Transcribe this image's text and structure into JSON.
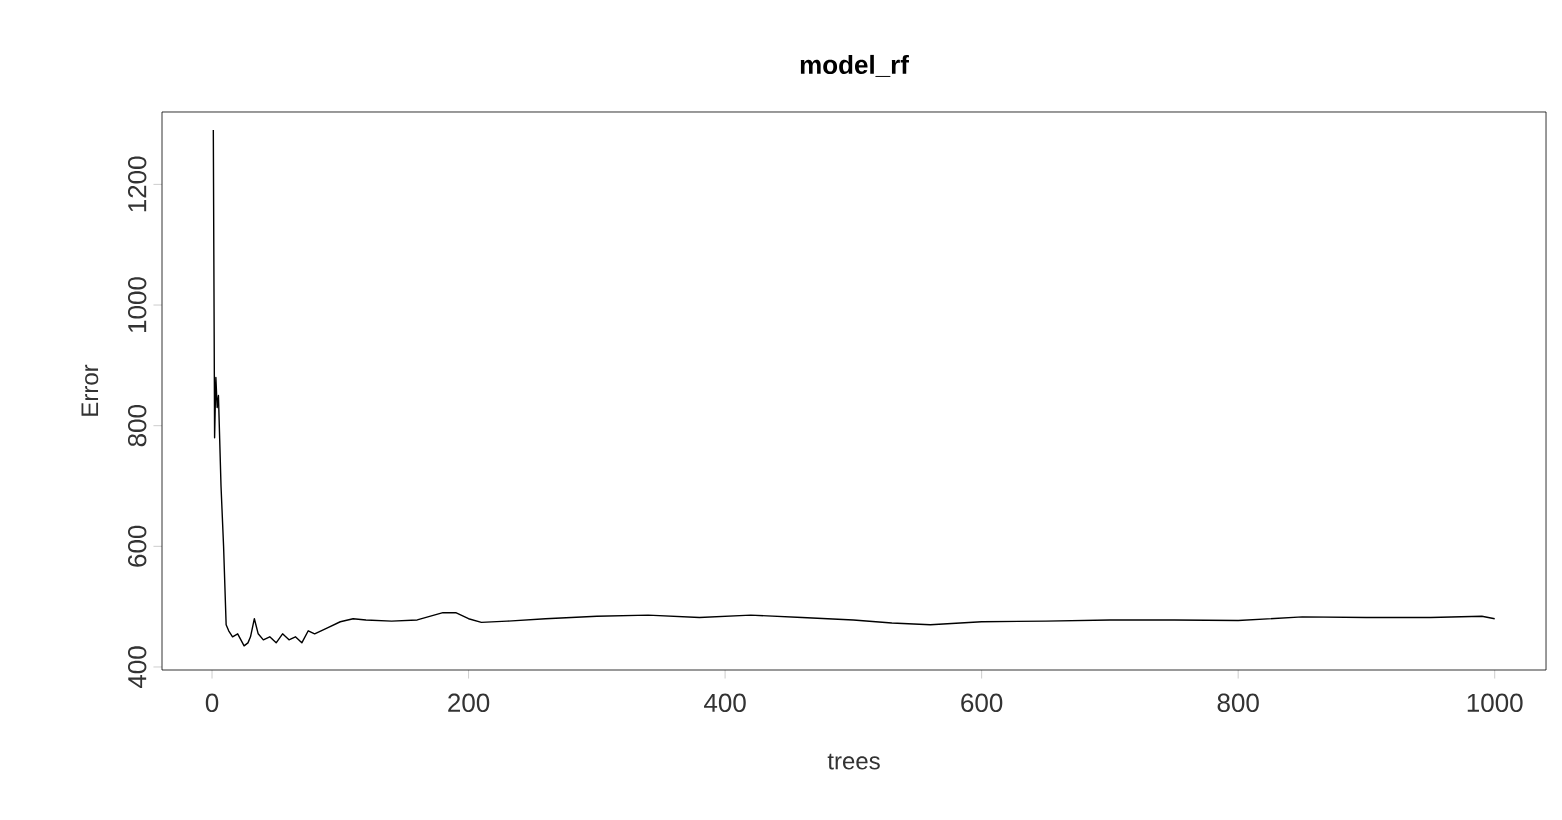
{
  "chart_data": {
    "type": "line",
    "title": "model_rf",
    "xlabel": "trees",
    "ylabel": "Error",
    "x": [
      1,
      2,
      3,
      4,
      5,
      7,
      9,
      11,
      13,
      16,
      20,
      25,
      28,
      30,
      33,
      36,
      40,
      45,
      50,
      55,
      60,
      65,
      70,
      75,
      80,
      90,
      100,
      110,
      120,
      140,
      160,
      180,
      190,
      200,
      210,
      230,
      260,
      300,
      340,
      380,
      420,
      460,
      500,
      530,
      560,
      600,
      650,
      700,
      750,
      800,
      850,
      900,
      950,
      990,
      1000
    ],
    "series": [
      {
        "color": "#000000",
        "values": [
          1290,
          780,
          880,
          830,
          850,
          700,
          600,
          470,
          460,
          450,
          455,
          435,
          440,
          450,
          480,
          455,
          445,
          450,
          440,
          455,
          445,
          450,
          440,
          460,
          455,
          465,
          475,
          480,
          478,
          476,
          478,
          490,
          490,
          480,
          474,
          476,
          480,
          484,
          486,
          482,
          486,
          482,
          478,
          473,
          470,
          475,
          476,
          478,
          478,
          477,
          483,
          482,
          482,
          484,
          480
        ]
      }
    ],
    "xlim": [
      -39,
      1040
    ],
    "ylim": [
      395,
      1320
    ],
    "xticks": [
      0,
      200,
      400,
      600,
      800,
      1000
    ],
    "yticks": [
      400,
      600,
      800,
      1000,
      1200
    ],
    "grid": false,
    "line_style": "solid"
  }
}
